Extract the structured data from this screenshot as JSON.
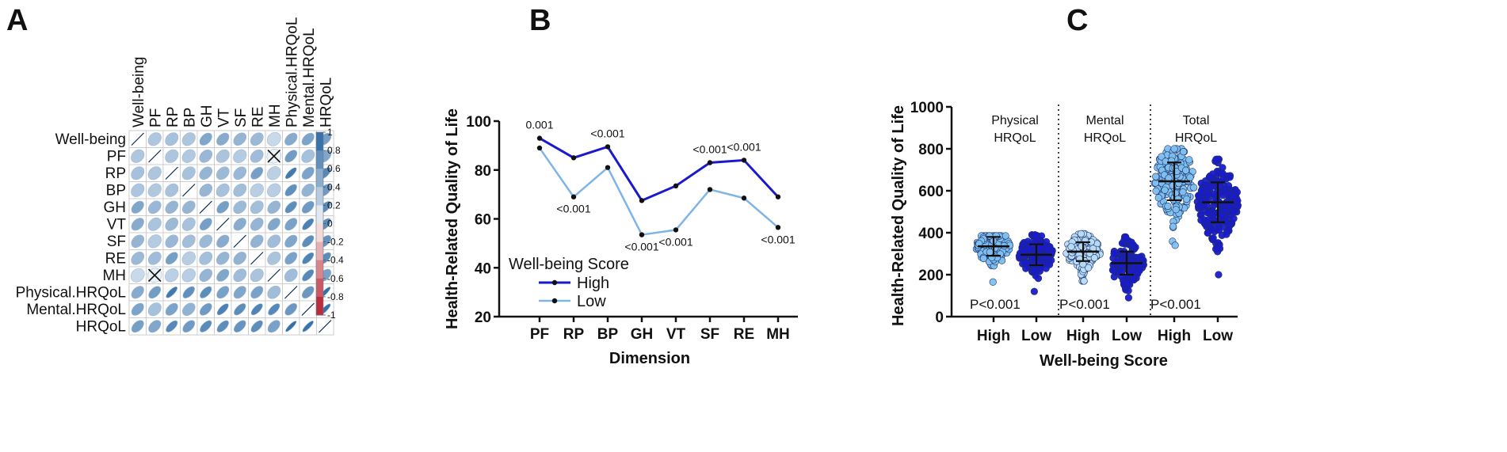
{
  "panels": [
    "A",
    "B",
    "C"
  ],
  "chart_data": [
    {
      "type": "heatmap",
      "panel": "A",
      "title": "",
      "variables": [
        "Well-being",
        "PF",
        "RP",
        "BP",
        "GH",
        "VT",
        "SF",
        "RE",
        "MH",
        "Physical.HRQoL",
        "Mental.HRQoL",
        "HRQoL"
      ],
      "colorbar": {
        "ticks": [
          "1",
          "0.8",
          "0.6",
          "0.4",
          "0.2",
          "0",
          "-0.2",
          "-0.4",
          "-0.6",
          "-0.8",
          "-1"
        ],
        "positive_color": "#2c6aa6",
        "negative_color": "#b2182b"
      },
      "non_significant": [
        [
          "PF",
          "MH"
        ]
      ],
      "correlations": [
        [
          1.0,
          0.33,
          0.37,
          0.34,
          0.55,
          0.52,
          0.45,
          0.42,
          0.21,
          0.52,
          0.57,
          0.6
        ],
        [
          0.33,
          1.0,
          0.34,
          0.32,
          0.43,
          0.35,
          0.3,
          0.4,
          0.05,
          0.62,
          0.37,
          0.55
        ],
        [
          0.37,
          0.34,
          1.0,
          0.36,
          0.45,
          0.42,
          0.43,
          0.6,
          0.27,
          0.85,
          0.57,
          0.75
        ],
        [
          0.34,
          0.32,
          0.36,
          1.0,
          0.44,
          0.36,
          0.39,
          0.28,
          0.28,
          0.7,
          0.46,
          0.63
        ],
        [
          0.55,
          0.43,
          0.45,
          0.44,
          1.0,
          0.6,
          0.42,
          0.38,
          0.45,
          0.72,
          0.63,
          0.73
        ],
        [
          0.52,
          0.35,
          0.42,
          0.36,
          0.6,
          1.0,
          0.51,
          0.45,
          0.55,
          0.58,
          0.8,
          0.72
        ],
        [
          0.45,
          0.3,
          0.43,
          0.39,
          0.42,
          0.51,
          1.0,
          0.46,
          0.4,
          0.55,
          0.72,
          0.67
        ],
        [
          0.42,
          0.4,
          0.6,
          0.28,
          0.38,
          0.45,
          0.46,
          1.0,
          0.35,
          0.58,
          0.78,
          0.72
        ],
        [
          0.21,
          0.05,
          0.27,
          0.28,
          0.45,
          0.55,
          0.4,
          0.35,
          1.0,
          0.4,
          0.75,
          0.58
        ],
        [
          0.52,
          0.62,
          0.85,
          0.7,
          0.72,
          0.58,
          0.55,
          0.58,
          0.4,
          1.0,
          0.65,
          0.92
        ],
        [
          0.57,
          0.37,
          0.57,
          0.46,
          0.63,
          0.8,
          0.72,
          0.78,
          0.75,
          0.65,
          1.0,
          0.9
        ],
        [
          0.6,
          0.55,
          0.75,
          0.63,
          0.73,
          0.72,
          0.67,
          0.72,
          0.58,
          0.92,
          0.9,
          1.0
        ]
      ]
    },
    {
      "type": "line",
      "panel": "B",
      "title": "",
      "xlabel": "Dimension",
      "ylabel": "Health-Related Quality of Life",
      "ylim": [
        20,
        100
      ],
      "yticks": [
        20,
        40,
        60,
        80,
        100
      ],
      "categories": [
        "PF",
        "RP",
        "BP",
        "GH",
        "VT",
        "SF",
        "RE",
        "MH"
      ],
      "legend_title": "Well-being Score",
      "series": [
        {
          "name": "High",
          "color": "#1a1acc",
          "values": [
            93,
            85,
            89.5,
            67.5,
            73.5,
            83,
            84,
            69
          ]
        },
        {
          "name": "Low",
          "color": "#7fb4e6",
          "values": [
            89,
            69,
            81,
            53.5,
            55.5,
            72,
            68.5,
            56.5
          ]
        }
      ],
      "annotations": [
        {
          "category": "PF",
          "text": "0.001",
          "position": "above"
        },
        {
          "category": "RP",
          "text": "<0.001",
          "position": "below"
        },
        {
          "category": "BP",
          "text": "<0.001",
          "position": "above"
        },
        {
          "category": "GH",
          "text": "<0.001",
          "position": "below"
        },
        {
          "category": "VT",
          "text": "<0.001",
          "position": "below"
        },
        {
          "category": "SF",
          "text": "<0.001",
          "position": "above"
        },
        {
          "category": "RE",
          "text": "<0.001",
          "position": "above"
        },
        {
          "category": "MH",
          "text": "<0.001",
          "position": "below"
        }
      ]
    },
    {
      "type": "scatter",
      "panel": "C",
      "title": "",
      "xlabel": "Well-being Score",
      "ylabel": "Health-Related Quality of Life",
      "ylim": [
        0,
        1000
      ],
      "yticks": [
        0,
        200,
        400,
        600,
        800,
        1000
      ],
      "groups": [
        {
          "name": "Physical\nHRQoL",
          "label_lines": [
            "Physical",
            "HRQoL"
          ],
          "p_text": "P<0.001",
          "subgroups": [
            {
              "label": "High",
              "color": "#7fc0ee",
              "mean": 335,
              "sd": 45,
              "min": 165,
              "max": 385
            },
            {
              "label": "Low",
              "color": "#1a1acc",
              "mean": 295,
              "sd": 50,
              "min": 120,
              "max": 390
            }
          ]
        },
        {
          "name": "Mental\nHRQoL",
          "label_lines": [
            "Mental",
            "HRQoL"
          ],
          "p_text": "P<0.001",
          "subgroups": [
            {
              "label": "High",
              "color": "#b8dcf5",
              "mean": 310,
              "sd": 45,
              "min": 170,
              "max": 395
            },
            {
              "label": "Low",
              "color": "#1a1acc",
              "mean": 255,
              "sd": 55,
              "min": 90,
              "max": 380
            }
          ]
        },
        {
          "name": "Total\nHRQoL",
          "label_lines": [
            "Total",
            "HRQoL"
          ],
          "p_text": "P<0.001",
          "subgroups": [
            {
              "label": "High",
              "color": "#7fc0ee",
              "mean": 645,
              "sd": 90,
              "min": 340,
              "max": 800
            },
            {
              "label": "Low",
              "color": "#1a1acc",
              "mean": 545,
              "sd": 95,
              "min": 200,
              "max": 750
            }
          ]
        }
      ]
    }
  ]
}
